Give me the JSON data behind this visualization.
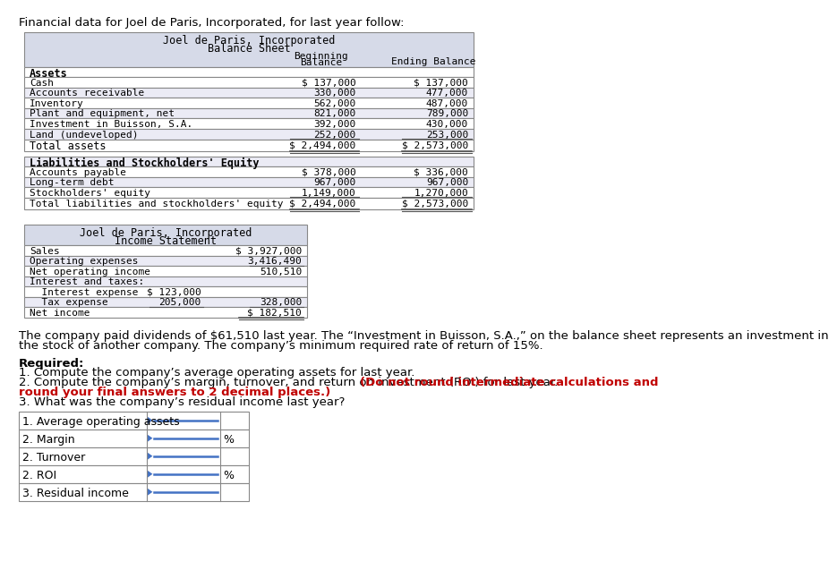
{
  "title_text": "Financial data for Joel de Paris, Incorporated, for last year follow:",
  "bs_title1": "Joel de Paris, Incorporated",
  "bs_title2": "Balance Sheet",
  "bs_header_bg": "#d6dae8",
  "bs_row_bg": "#ffffff",
  "bs_alt_bg": "#ebebf5",
  "assets_label": "Assets",
  "assets_rows": [
    [
      "Cash",
      "$ 137,000",
      "$ 137,000"
    ],
    [
      "Accounts receivable",
      "330,000",
      "477,000"
    ],
    [
      "Inventory",
      "562,000",
      "487,000"
    ],
    [
      "Plant and equipment, net",
      "821,000",
      "789,000"
    ],
    [
      "Investment in Buisson, S.A.",
      "392,000",
      "430,000"
    ],
    [
      "Land (undeveloped)",
      "252,000",
      "253,000"
    ]
  ],
  "total_assets": [
    "Total assets",
    "$ 2,494,000",
    "$ 2,573,000"
  ],
  "liabilities_label": "Liabilities and Stockholders' Equity",
  "liabilities_rows": [
    [
      "Accounts payable",
      "$ 378,000",
      "$ 336,000"
    ],
    [
      "Long-term debt",
      "967,000",
      "967,000"
    ],
    [
      "Stockholders' equity",
      "1,149,000",
      "1,270,000"
    ]
  ],
  "total_liabilities": [
    "Total liabilities and stockholders' equity",
    "$ 2,494,000",
    "$ 2,573,000"
  ],
  "is_title1": "Joel de Paris, Incorporated",
  "is_title2": "Income Statement",
  "is_rows": [
    [
      "Sales",
      "",
      "$ 3,927,000",
      false,
      false,
      false
    ],
    [
      "Operating expenses",
      "",
      "3,416,490",
      false,
      true,
      false
    ],
    [
      "Net operating income",
      "",
      "510,510",
      false,
      false,
      false
    ],
    [
      "Interest and taxes:",
      "",
      "",
      false,
      false,
      false
    ],
    [
      "  Interest expense",
      "$ 123,000",
      "",
      false,
      false,
      false
    ],
    [
      "  Tax expense",
      "205,000",
      "328,000",
      true,
      true,
      false
    ],
    [
      "Net income",
      "",
      "$ 182,510",
      false,
      false,
      true
    ]
  ],
  "note_text1": "The company paid dividends of $61,510 last year. The “Investment in Buisson, S.A.,” on the balance sheet represents an investment in",
  "note_text2": "the stock of another company. The company’s minimum required rate of return of 15%.",
  "req_label": "Required:",
  "req1": "1. Compute the company’s average operating assets for last year.",
  "req2_normal": "2. Compute the company’s margin, turnover, and return on investment (ROI) for last year. ",
  "req2_bold": "(Do not round intermediate calculations and",
  "req2_bold2": "round your final answers to 2 decimal places.)",
  "req3": "3. What was the company’s residual income last year?",
  "answer_rows": [
    [
      "1. Average operating assets",
      false
    ],
    [
      "2. Margin",
      true
    ],
    [
      "2. Turnover",
      false
    ],
    [
      "2. ROI",
      true
    ],
    [
      "3. Residual income",
      false
    ]
  ],
  "blue_color": "#4472c4",
  "line_color": "#555555",
  "border_color": "#888888",
  "font_mono": "monospace",
  "font_sans": "sans-serif"
}
